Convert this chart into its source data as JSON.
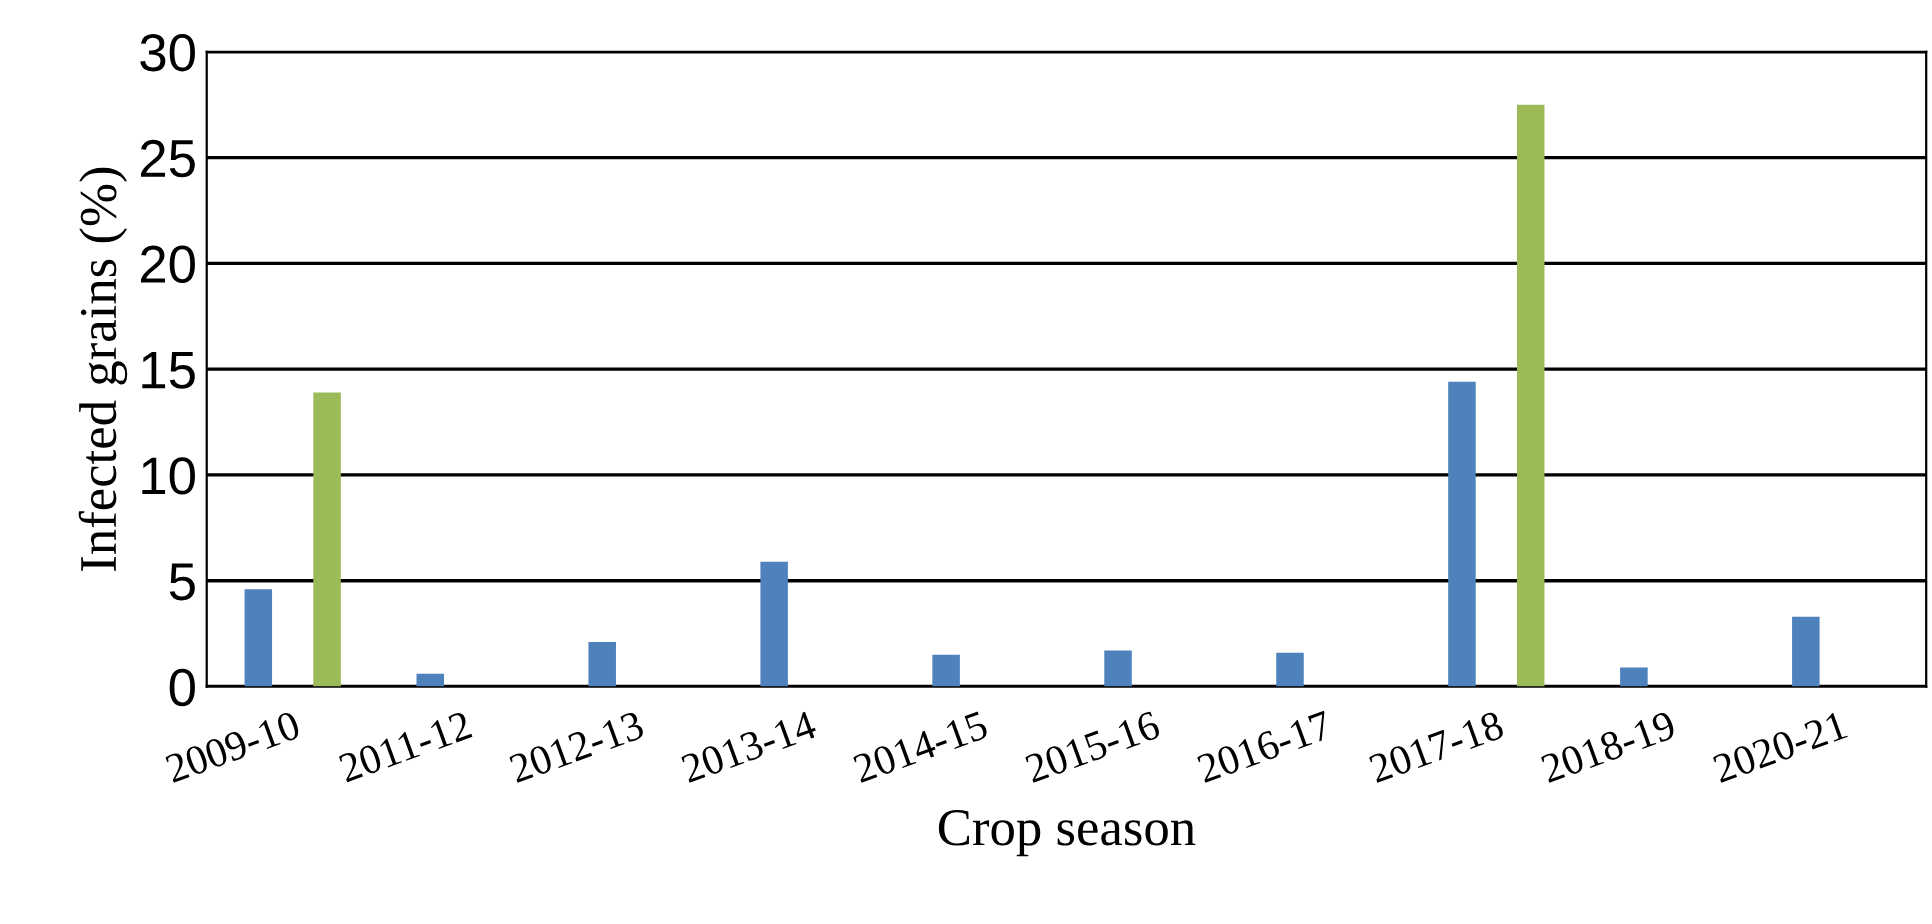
{
  "chart_data": {
    "type": "bar",
    "xlabel": "Crop season",
    "ylabel": "Infected grains (%)",
    "categories": [
      "2009-10",
      "2011-12",
      "2012-13",
      "2013-14",
      "2014-15",
      "2015-16",
      "2016-17",
      "2017-18",
      "2018-19",
      "2020-21"
    ],
    "series": [
      {
        "color": "#4f81bd",
        "values": [
          4.6,
          0.6,
          2.1,
          5.9,
          1.5,
          1.7,
          1.6,
          14.4,
          0.9,
          3.3
        ]
      },
      {
        "color": "#9bbb59",
        "values": [
          13.9,
          null,
          null,
          null,
          null,
          null,
          null,
          27.5,
          null,
          null
        ]
      }
    ],
    "ylim": [
      0,
      30
    ],
    "yticks": [
      0,
      5,
      10,
      15,
      20,
      25,
      30
    ],
    "grid": "y",
    "legend": false
  }
}
